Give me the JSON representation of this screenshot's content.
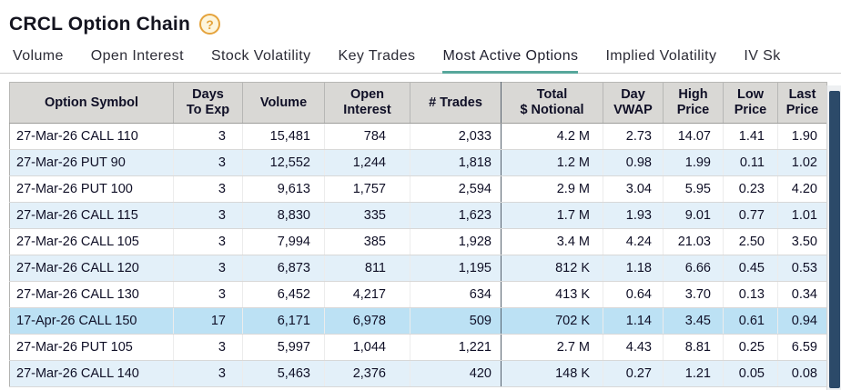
{
  "page": {
    "title": "CRCL Option Chain",
    "help_label": "?"
  },
  "tabs": [
    {
      "label": "Volume",
      "active": false
    },
    {
      "label": "Open Interest",
      "active": false
    },
    {
      "label": "Stock Volatility",
      "active": false
    },
    {
      "label": "Key Trades",
      "active": false
    },
    {
      "label": "Most Active Options",
      "active": true
    },
    {
      "label": "Implied Volatility",
      "active": false
    },
    {
      "label": "IV Sk",
      "active": false
    }
  ],
  "table": {
    "columns": [
      {
        "label": "Option Symbol"
      },
      {
        "label": "Days\nTo Exp"
      },
      {
        "label": "Volume"
      },
      {
        "label": "Open\nInterest"
      },
      {
        "label": "# Trades"
      },
      {
        "label": "Total\n$ Notional"
      },
      {
        "label": "Day\nVWAP"
      },
      {
        "label": "High\nPrice"
      },
      {
        "label": "Low\nPrice"
      },
      {
        "label": "Last\nPrice"
      }
    ],
    "rows": [
      {
        "symbol": "27-Mar-26 CALL 110",
        "days_to_exp": "3",
        "volume": "15,481",
        "open_interest": "784",
        "trades": "2,033",
        "total_notional": "4.2 M",
        "day_vwap": "2.73",
        "high_price": "14.07",
        "low_price": "1.41",
        "last_price": "1.90",
        "highlighted": false
      },
      {
        "symbol": "27-Mar-26 PUT 90",
        "days_to_exp": "3",
        "volume": "12,552",
        "open_interest": "1,244",
        "trades": "1,818",
        "total_notional": "1.2 M",
        "day_vwap": "0.98",
        "high_price": "1.99",
        "low_price": "0.11",
        "last_price": "1.02",
        "highlighted": false
      },
      {
        "symbol": "27-Mar-26 PUT 100",
        "days_to_exp": "3",
        "volume": "9,613",
        "open_interest": "1,757",
        "trades": "2,594",
        "total_notional": "2.9 M",
        "day_vwap": "3.04",
        "high_price": "5.95",
        "low_price": "0.23",
        "last_price": "4.20",
        "highlighted": false
      },
      {
        "symbol": "27-Mar-26 CALL 115",
        "days_to_exp": "3",
        "volume": "8,830",
        "open_interest": "335",
        "trades": "1,623",
        "total_notional": "1.7 M",
        "day_vwap": "1.93",
        "high_price": "9.01",
        "low_price": "0.77",
        "last_price": "1.01",
        "highlighted": false
      },
      {
        "symbol": "27-Mar-26 CALL 105",
        "days_to_exp": "3",
        "volume": "7,994",
        "open_interest": "385",
        "trades": "1,928",
        "total_notional": "3.4 M",
        "day_vwap": "4.24",
        "high_price": "21.03",
        "low_price": "2.50",
        "last_price": "3.50",
        "highlighted": false
      },
      {
        "symbol": "27-Mar-26 CALL 120",
        "days_to_exp": "3",
        "volume": "6,873",
        "open_interest": "811",
        "trades": "1,195",
        "total_notional": "812 K",
        "day_vwap": "1.18",
        "high_price": "6.66",
        "low_price": "0.45",
        "last_price": "0.53",
        "highlighted": false
      },
      {
        "symbol": "27-Mar-26 CALL 130",
        "days_to_exp": "3",
        "volume": "6,452",
        "open_interest": "4,217",
        "trades": "634",
        "total_notional": "413 K",
        "day_vwap": "0.64",
        "high_price": "3.70",
        "low_price": "0.13",
        "last_price": "0.34",
        "highlighted": false
      },
      {
        "symbol": "17-Apr-26 CALL 150",
        "days_to_exp": "17",
        "volume": "6,171",
        "open_interest": "6,978",
        "trades": "509",
        "total_notional": "702 K",
        "day_vwap": "1.14",
        "high_price": "3.45",
        "low_price": "0.61",
        "last_price": "0.94",
        "highlighted": true
      },
      {
        "symbol": "27-Mar-26 PUT 105",
        "days_to_exp": "3",
        "volume": "5,997",
        "open_interest": "1,044",
        "trades": "1,221",
        "total_notional": "2.7 M",
        "day_vwap": "4.43",
        "high_price": "8.81",
        "low_price": "0.25",
        "last_price": "6.59",
        "highlighted": false
      },
      {
        "symbol": "27-Mar-26 CALL 140",
        "days_to_exp": "3",
        "volume": "5,463",
        "open_interest": "2,376",
        "trades": "420",
        "total_notional": "148 K",
        "day_vwap": "0.27",
        "high_price": "1.21",
        "low_price": "0.05",
        "last_price": "0.08",
        "highlighted": false
      }
    ]
  },
  "colors": {
    "accent": "#57a79b",
    "header_bg": "#d9d8d5",
    "row_alt_bg": "#e3f0f9",
    "row_highlight_bg": "#bce1f4",
    "scrollbar_thumb": "#2c4a69",
    "help_orange": "#e5a33c"
  }
}
